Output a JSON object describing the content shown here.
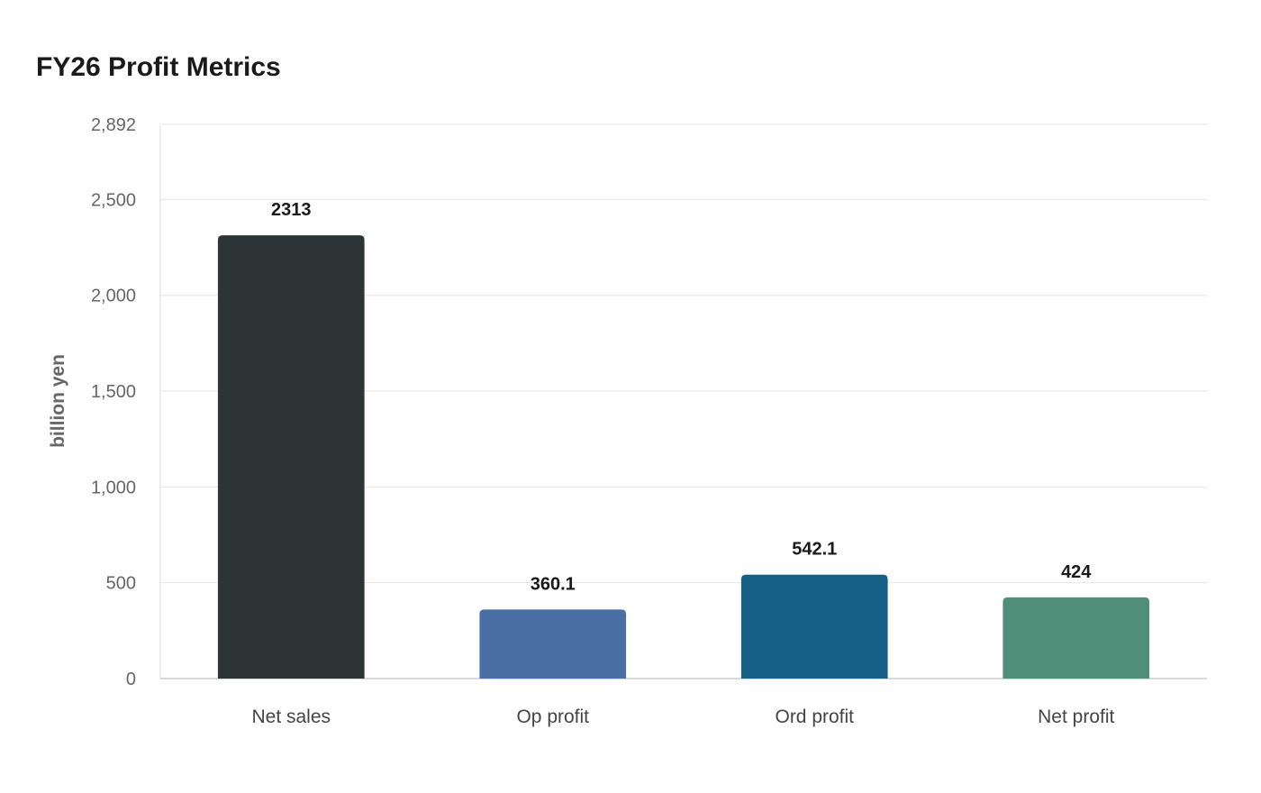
{
  "chart_data": {
    "type": "bar",
    "title": "FY26 Profit Metrics",
    "xlabel": "",
    "ylabel": "billion yen",
    "categories": [
      "Net sales",
      "Op profit",
      "Ord profit",
      "Net profit"
    ],
    "values": [
      2313,
      360.1,
      542.1,
      424
    ],
    "value_labels": [
      "2313",
      "360.1",
      "542.1",
      "424"
    ],
    "colors": [
      "#2d3436",
      "#4a6fa5",
      "#166088",
      "#4f8f7a"
    ],
    "ylim": [
      0,
      2892
    ],
    "yticks": [
      0,
      500,
      1000,
      1500,
      2000,
      2500,
      2892
    ],
    "ytick_labels": [
      "0",
      "500",
      "1,000",
      "1,500",
      "2,000",
      "2,500",
      "2,892"
    ],
    "grid": true,
    "legend": "none"
  }
}
